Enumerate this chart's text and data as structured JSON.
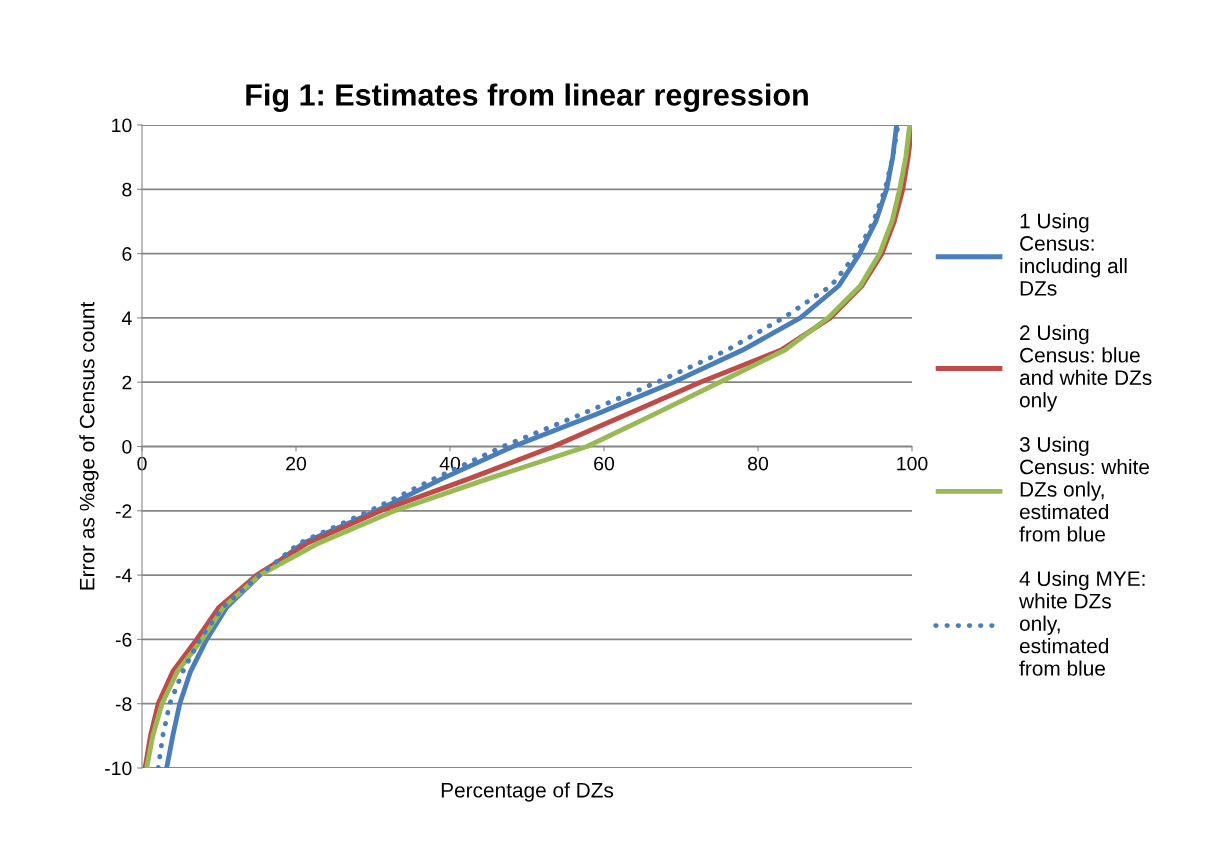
{
  "chart_data": {
    "type": "line",
    "title": "Fig 1: Estimates from linear regression",
    "xlabel": "Percentage of DZs",
    "ylabel": "Error as %age of Census count",
    "xlim": [
      0,
      100
    ],
    "xticks": [
      0,
      20,
      40,
      60,
      80,
      100
    ],
    "ylim": [
      -10,
      10
    ],
    "yticks": [
      -10,
      -8,
      -6,
      -4,
      -2,
      0,
      2,
      4,
      6,
      8,
      10
    ],
    "grid": "y",
    "legend": "right",
    "marker": "none",
    "series": [
      {
        "name": "1 Using\nCensus:\nincluding all\nDZs",
        "color": "#4a7ebb",
        "line_style": "solid",
        "x": [
          3.2,
          4,
          4.9,
          6.3,
          8.4,
          11,
          15.3,
          21,
          30.5,
          39,
          48.2,
          59,
          69,
          78,
          85.5,
          90.5,
          93.2,
          95.3,
          96.7,
          97.5,
          98
        ],
        "values": [
          -10,
          -9,
          -8,
          -7,
          -6,
          -5,
          -4,
          -3,
          -2,
          -1,
          0,
          1,
          2,
          3,
          4,
          5,
          6,
          7,
          8,
          9,
          10
        ]
      },
      {
        "name": "2 Using\nCensus: blue\nand white DZs\nonly",
        "color": "#be4b48",
        "line_style": "solid",
        "x": [
          0.4,
          1.1,
          2.1,
          4,
          7.1,
          10,
          14.9,
          21.5,
          31,
          42.5,
          53.4,
          63,
          72.5,
          83,
          89.4,
          93.5,
          96.1,
          97.7,
          98.8,
          99.5,
          100
        ],
        "values": [
          -10,
          -9,
          -8,
          -7,
          -6,
          -5,
          -4,
          -3,
          -2,
          -1,
          0,
          1,
          2,
          3,
          4,
          5,
          6,
          7,
          8,
          9,
          10
        ]
      },
      {
        "name": "3 Using\nCensus: white\nDZs only,\nestimated\nfrom blue",
        "color": "#98b954",
        "line_style": "solid",
        "x": [
          0.6,
          1.4,
          2.6,
          4.6,
          7.8,
          10.6,
          15.3,
          23,
          32.8,
          45,
          57.8,
          66.5,
          75,
          83.5,
          89.1,
          93.3,
          95.8,
          97.4,
          98.4,
          99.2,
          99.7
        ],
        "values": [
          -10,
          -9,
          -8,
          -7,
          -6,
          -5,
          -4,
          -3,
          -2,
          -1,
          0,
          1,
          2,
          3,
          4,
          5,
          6,
          7,
          8,
          9,
          10
        ]
      },
      {
        "name": "4 Using MYE:\nwhite DZs\nonly,\nestimated\nfrom blue",
        "color": "#4a7ebb",
        "line_style": "dotted",
        "x": [
          2.1,
          2.7,
          3.6,
          5.3,
          7.5,
          10.5,
          15.3,
          20.5,
          29.6,
          38,
          46.9,
          57,
          66.9,
          76,
          83.3,
          89.5,
          92.8,
          95,
          96.5,
          97.5,
          98.2
        ],
        "values": [
          -10,
          -9,
          -8,
          -7,
          -6,
          -5,
          -4,
          -3,
          -2,
          -1,
          0,
          1,
          2,
          3,
          4,
          5,
          6,
          7,
          8,
          9,
          10
        ]
      }
    ]
  }
}
